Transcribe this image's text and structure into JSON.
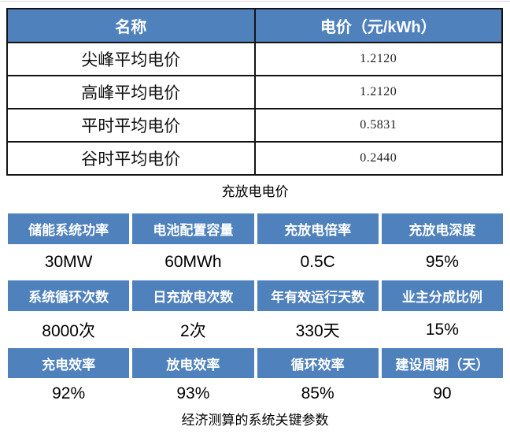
{
  "colors": {
    "header_blue": "#4f81bd",
    "table_border": "#141414",
    "header_text": "#ffffff",
    "body_text": "#000000"
  },
  "price_table": {
    "headers": [
      "名称",
      "电价（元/kWh）"
    ],
    "rows": [
      {
        "name": "尖峰平均电价",
        "value": "1.2120"
      },
      {
        "name": "高峰平均电价",
        "value": "1.2120"
      },
      {
        "name": "平时平均电价",
        "value": "0.5831"
      },
      {
        "name": "谷时平均电价",
        "value": "0.2440"
      }
    ],
    "caption": "充放电电价"
  },
  "param_table": {
    "groups": [
      {
        "headers": [
          "储能系统功率",
          "电池配置容量",
          "充放电倍率",
          "充放电深度"
        ],
        "values": [
          "30MW",
          "60MWh",
          "0.5C",
          "95%"
        ]
      },
      {
        "headers": [
          "系统循环次数",
          "日充放电次数",
          "年有效运行天数",
          "业主分成比例"
        ],
        "values": [
          "8000次",
          "2次",
          "330天",
          "15%"
        ]
      },
      {
        "headers": [
          "充电效率",
          "放电效率",
          "循环效率",
          "建设周期（天）"
        ],
        "values": [
          "92%",
          "93%",
          "85%",
          "90"
        ]
      }
    ],
    "caption": "经济测算的系统关键参数"
  }
}
